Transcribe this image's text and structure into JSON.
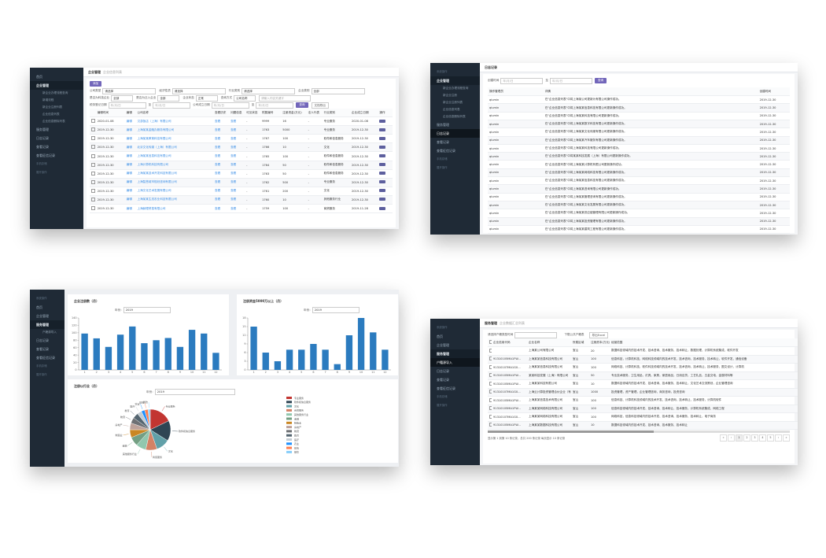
{
  "screen1": {
    "sidebar": {
      "items": [
        {
          "label": "首页",
          "kind": "item"
        },
        {
          "label": "企业管理",
          "kind": "head"
        },
        {
          "label": "新企业办理流程查询",
          "kind": "sub"
        },
        {
          "label": "新增流程",
          "kind": "sub"
        },
        {
          "label": "新企业注册列表",
          "kind": "sub"
        },
        {
          "label": "企业信息列表",
          "kind": "sub"
        },
        {
          "label": "企业信息删除列表",
          "kind": "sub"
        },
        {
          "label": "服务管理",
          "kind": "item"
        },
        {
          "label": "日志记录",
          "kind": "item"
        },
        {
          "label": "查看记录",
          "kind": "item"
        },
        {
          "label": "查看征信记录",
          "kind": "item"
        },
        {
          "label": "手机存储",
          "kind": "dim"
        },
        {
          "label": "展开操作",
          "kind": "dim"
        }
      ]
    },
    "breadcrumb": {
      "title": "企业管理",
      "sub": "企业信息列表"
    },
    "add_button": "添加",
    "filters": {
      "row1": [
        {
          "label": "公司类型",
          "value": "请选择"
        },
        {
          "label": "经济性质",
          "value": "请选择"
        },
        {
          "label": "行业类别",
          "value": "请选择"
        },
        {
          "label": "企业类别",
          "value": "全部"
        }
      ],
      "row2": [
        {
          "label": "是否为科技企业",
          "value": "全部"
        },
        {
          "label": "是否为迁入企业",
          "value": "全部"
        },
        {
          "label": "企业状态",
          "value": "正常"
        },
        {
          "label": "查询方式",
          "value": "公司名称"
        }
      ],
      "search_placeholder": "请输入内容关键字",
      "row3_labels": [
        "税务登记日期",
        "公司成立日期"
      ],
      "date_placeholder": "年/月/日",
      "date_sep": "至",
      "search_button": "查询",
      "export_button": "文档导出"
    },
    "table": {
      "headers": [
        "",
        "编辑时间",
        "编辑",
        "公司名称",
        "",
        "查看历史",
        "问题信息",
        "可见状态",
        "附属编号",
        "注册资金(万元)",
        "法人代表",
        "行业类别",
        "企业成立日期",
        "操作"
      ],
      "rows": [
        [
          "2020-01-08",
          "编辑",
          "汉游饭店（上海）有限公司",
          "查看",
          "查看",
          "-",
          "9999",
          "16",
          "-",
          "专业服务",
          "2020-01-08"
        ],
        [
          "2019-12-30",
          "编辑",
          "上海某某金融办服务有限公司",
          "查看",
          "查看",
          "-",
          "1763",
          "5000",
          "-",
          "专业服务",
          "2019-12-30"
        ],
        [
          "2019-12-30",
          "编辑",
          "上海某某教育科技有限公司",
          "查看",
          "查看",
          "-",
          "1767",
          "100",
          "-",
          "软件和信息服务",
          "2019-12-30"
        ],
        [
          "2019-12-30",
          "编辑",
          "北京文化传媒（上海）有限公司",
          "查看",
          "查看",
          "-",
          "1766",
          "10",
          "-",
          "文化",
          "2019-12-30"
        ],
        [
          "2019-12-30",
          "编辑",
          "上海某某信息科技有限公司",
          "查看",
          "查看",
          "-",
          "1765",
          "100",
          "-",
          "软件和信息服务",
          "2019-12-30"
        ],
        [
          "2019-12-30",
          "编辑",
          "上海计算机科技有限公司",
          "查看",
          "查看",
          "-",
          "1764",
          "50",
          "-",
          "软件和信息服务",
          "2019-12-30"
        ],
        [
          "2019-12-30",
          "编辑",
          "上海某某技术开发科技有限公司",
          "查看",
          "查看",
          "-",
          "1763",
          "50",
          "-",
          "软件和信息服务",
          "2019-12-30"
        ],
        [
          "2019-12-30",
          "编辑",
          "上海智慧城市规划咨询有限公司",
          "查看",
          "查看",
          "-",
          "1762",
          "500",
          "-",
          "专业服务",
          "2019-12-30"
        ],
        [
          "2019-12-30",
          "编辑",
          "上海文化艺术发展有限公司",
          "查看",
          "查看",
          "-",
          "1761",
          "200",
          "-",
          "文化",
          "2019-12-30"
        ],
        [
          "2019-12-30",
          "编辑",
          "上海某某生态农业科技有限公司",
          "查看",
          "查看",
          "-",
          "1760",
          "10",
          "-",
          "其他服务行业",
          "2019-12-30"
        ],
        [
          "2019-12-30",
          "编辑",
          "上海赫理贸易有限公司",
          "查看",
          "查看",
          "-",
          "1759",
          "100",
          "-",
          "商贸服务",
          "2019-11-28"
        ]
      ]
    }
  },
  "screen2": {
    "sidebar": {
      "items": [
        {
          "label": "系统操作",
          "kind": "dim"
        },
        {
          "label": "企业管理",
          "kind": "head"
        },
        {
          "label": "新企业办理流程查询",
          "kind": "sub"
        },
        {
          "label": "新企业注册",
          "kind": "sub"
        },
        {
          "label": "新企业注册列表",
          "kind": "sub"
        },
        {
          "label": "企业信息列表",
          "kind": "sub"
        },
        {
          "label": "企业信息删除列表",
          "kind": "sub"
        },
        {
          "label": "服务管理",
          "kind": "item"
        },
        {
          "label": "日志记录",
          "kind": "active"
        },
        {
          "label": "查看记录",
          "kind": "item"
        },
        {
          "label": "查看征信记录",
          "kind": "item"
        },
        {
          "label": "手机存储",
          "kind": "dim"
        },
        {
          "label": "展开操作",
          "kind": "dim"
        }
      ]
    },
    "breadcrumb": {
      "title": "日志记录",
      "sub": ""
    },
    "filter": {
      "label": "创建时间",
      "placeholder": "年/月/日",
      "sep": "至",
      "button": "查询"
    },
    "table": {
      "headers": [
        "操作管理员",
        "详情",
        "创建时间"
      ],
      "rows": [
        [
          "qiumin",
          "在\"企业信息列表\"中将上海某公司更新为有限公司操作成功。",
          "2019-12-30"
        ],
        [
          "qiumin",
          "在\"企业信息列表\"中将上海某某信息科技有限公司更新操作成功。",
          "2019-12-30"
        ],
        [
          "qiumin",
          "在\"企业信息列表\"中将上海某某科技有限公司更新操作成功。",
          "2019-12-30"
        ],
        [
          "qiumin",
          "在\"企业信息列表\"中将上海某某数字科技有限公司更新操作成功。",
          "2019-12-30"
        ],
        [
          "qiumin",
          "在\"企业信息列表\"中将上海某某文化传媒有限公司更新操作成功。",
          "2019-12-30"
        ],
        [
          "qiumin",
          "在\"企业信息列表\"中将上海某某汽车服务有限公司更新操作成功。",
          "2019-12-30"
        ],
        [
          "qiumin",
          "在\"企业信息列表\"中将上海某某科技有限公司更新操作成功。",
          "2019-12-30"
        ],
        [
          "qiumin",
          "在\"企业信息列表\"中将某某科技发展（上海）有限公司更新操作成功。",
          "2019-12-30"
        ],
        [
          "qiumin",
          "在\"企业信息列表\"中将上海某某计算机有限公司更新操作成功。",
          "2019-12-30"
        ],
        [
          "qiumin",
          "在\"企业信息列表\"中将上海某某网络科技有限公司更新操作成功。",
          "2019-12-30"
        ],
        [
          "qiumin",
          "在\"企业信息列表\"中将上海某某信息科技有限公司更新操作成功。",
          "2019-12-30"
        ],
        [
          "qiumin",
          "在\"企业信息列表\"中将上海某某咨询有限公司更新操作成功。",
          "2019-12-30"
        ],
        [
          "qiumin",
          "在\"企业信息列表\"中将上海某某管理咨询有限公司更新操作成功。",
          "2019-12-30"
        ],
        [
          "qiumin",
          "在\"企业信息列表\"中将上海某某文化发展有限公司更新操作成功。",
          "2019-12-30"
        ],
        [
          "qiumin",
          "在\"企业信息列表\"中将上海某某供应链管理有限公司更新操作成功。",
          "2019-12-30"
        ],
        [
          "qiumin",
          "在\"企业信息列表\"中将上海某某投资管理有限公司更新操作成功。",
          "2019-12-30"
        ],
        [
          "qiumin",
          "在\"企业信息列表\"中将上海某某建筑工程有限公司更新操作成功。",
          "2019-12-30"
        ],
        [
          "qiumin",
          "在\"企业信息列表\"中将上海某某电子科技有限公司更新操作成功。",
          "2019-12-30"
        ]
      ]
    }
  },
  "screen3": {
    "sidebar": {
      "items": [
        {
          "label": "系统操作",
          "kind": "dim"
        },
        {
          "label": "首页",
          "kind": "item"
        },
        {
          "label": "企业管理",
          "kind": "item"
        },
        {
          "label": "服务管理",
          "kind": "head"
        },
        {
          "label": "户籍源导入",
          "kind": "sub"
        },
        {
          "label": "日志记录",
          "kind": "item"
        },
        {
          "label": "查看记录",
          "kind": "item"
        },
        {
          "label": "查看征信记录",
          "kind": "item"
        },
        {
          "label": "手机存储",
          "kind": "dim"
        },
        {
          "label": "展开操作",
          "kind": "dim"
        }
      ]
    },
    "card_year_label": "年份：",
    "card_year_value": "2019"
  },
  "screen4": {
    "sidebar": {
      "items": [
        {
          "label": "系统操作",
          "kind": "dim"
        },
        {
          "label": "首页",
          "kind": "item"
        },
        {
          "label": "企业管理",
          "kind": "item"
        },
        {
          "label": "服务管理",
          "kind": "head"
        },
        {
          "label": "户籍源导入",
          "kind": "active"
        },
        {
          "label": "日志记录",
          "kind": "item"
        },
        {
          "label": "查看记录",
          "kind": "item"
        },
        {
          "label": "查看征信记录",
          "kind": "item"
        },
        {
          "label": "手机存储",
          "kind": "dim"
        },
        {
          "label": "展开操作",
          "kind": "dim"
        }
      ]
    },
    "breadcrumb": {
      "title": "服务管理",
      "sub": "企业数据汇总列表"
    },
    "toolbar": {
      "label": "请选择户籍类型时间",
      "link": "下载公共户籍表",
      "export": "导出Excel"
    },
    "table": {
      "headers": [
        "",
        "企业信用代码",
        "企业名称",
        "所属区域",
        "注册资本(万元)",
        "经营范围"
      ],
      "rows": [
        [
          "",
          "上海某公司有限公司",
          "宝山",
          "20",
          "数据科技领域内的技术开发、技术咨询、技术服务、技术转让，数据处理，计算机系统集成，软件开发"
        ],
        [
          "91310105MA1FW...",
          "上海某某信息科技有限公司",
          "宝山",
          "100",
          "信息科技，计算机科技、网络科技领域内的技术开发、技术咨询、技术服务、技术转让，软件开发，通信设备"
        ],
        [
          "91310107MA1G0...",
          "上海某某信息科技有限公司",
          "宝山",
          "100",
          "网络科技、计算机科技、软件科技领域内的技术开发、技术咨询、技术转让、技术服务，图文设计，计算机"
        ],
        [
          "91310105MA1FW...",
          "某某科技发展（上海）有限公司",
          "宝山",
          "50",
          "专业技术服务，卫生用品，灯具，家具，家居用品，日用百货，工艺礼品，五金交电，金属材料等"
        ],
        [
          "91310105MA1FW...",
          "上海某某科技有限公司",
          "宝山",
          "10",
          "数据科技领域内的技术开发、技术咨询、技术服务、技术转让，文化艺术交流策划，企业管理咨询"
        ],
        [
          "91310107MA1G0...",
          "上海云计算投资管理合伙企业（有限合伙）",
          "宝山",
          "1000",
          "投资管理，资产管理，企业管理咨询，商务咨询，投资咨询"
        ],
        [
          "91310105MA1FW...",
          "上海某某信息技术有限公司",
          "宝山",
          "100",
          "信息科技、计算机科技领域内的技术开发、技术咨询、技术转让、技术服务，计算机软件"
        ],
        [
          "91310105MA1FW...",
          "上海某某网络科技有限公司",
          "宝山",
          "100",
          "信息科技领域内的技术开发、技术咨询、技术转让、技术服务，计算机系统集成，网络工程"
        ],
        [
          "91310107MA1G0...",
          "上海某某网络科技有限公司",
          "宝山",
          "100",
          "网络科技，信息科技领域内的技术开发、技术咨询、技术服务、技术转让，电子商务"
        ],
        [
          "91310105MA1FW...",
          "上海某某数据科技有限公司",
          "宝山",
          "10",
          "数据科技领域内的技术开发、技术咨询、技术服务、技术转让"
        ]
      ]
    },
    "footer": "显示第 1 到第 10 条记录，总共 200 条记录 每页显示 10 条记录",
    "pages": [
      "«",
      "‹",
      "1",
      "2",
      "3",
      "4",
      "5",
      "›",
      "»"
    ]
  },
  "charts": {
    "chart_data": [
      {
        "type": "bar",
        "title": "企业注册数（月）",
        "categories": [
          "1",
          "2",
          "3",
          "4",
          "5",
          "6",
          "7",
          "8",
          "9",
          "10",
          "11",
          "12"
        ],
        "values": [
          98,
          85,
          62,
          95,
          117,
          72,
          80,
          86,
          62,
          108,
          98,
          46
        ],
        "ylim": [
          0,
          140
        ],
        "yticks": [
          0,
          20,
          40,
          60,
          80,
          100,
          120,
          140
        ],
        "color": "#2b7bbf"
      },
      {
        "type": "bar",
        "title": "注册资金5000万以上（月）",
        "categories": [
          "1",
          "2",
          "3",
          "4",
          "5",
          "6",
          "7",
          "8",
          "9",
          "10",
          "11",
          "12"
        ],
        "values": [
          15,
          6,
          3,
          7,
          7,
          9,
          7,
          2,
          12,
          18,
          13,
          7
        ],
        "ylim": [
          0,
          18
        ],
        "yticks": [
          0,
          3,
          6,
          9,
          12,
          15,
          18
        ],
        "color": "#2b7bbf"
      },
      {
        "type": "pie",
        "title": "注册以行业（月）",
        "slices": [
          {
            "name": "专业服务",
            "value": 20,
            "color": "#c23531"
          },
          {
            "name": "软件和信息服务",
            "value": 18,
            "color": "#2f4554"
          },
          {
            "name": "文化",
            "value": 12,
            "color": "#61a0a8"
          },
          {
            "name": "商贸服务",
            "value": 10,
            "color": "#d48265"
          },
          {
            "name": "其他服务行业",
            "value": 9,
            "color": "#91c7ae"
          },
          {
            "name": "金融",
            "value": 8,
            "color": "#749f83"
          },
          {
            "name": "制造业",
            "value": 7,
            "color": "#ca8622"
          },
          {
            "name": "房地产",
            "value": 6,
            "color": "#bda29a"
          },
          {
            "name": "物流",
            "value": 5,
            "color": "#6e7074"
          },
          {
            "name": "教育",
            "value": 5,
            "color": "#546570"
          },
          {
            "name": "医疗",
            "value": 4,
            "color": "#c4ccd3"
          },
          {
            "name": "农业",
            "value": 3,
            "color": "#1e90ff"
          },
          {
            "name": "建筑",
            "value": 3,
            "color": "#ff7f50"
          },
          {
            "name": "餐饮",
            "value": 2,
            "color": "#87cefa"
          }
        ]
      }
    ]
  }
}
